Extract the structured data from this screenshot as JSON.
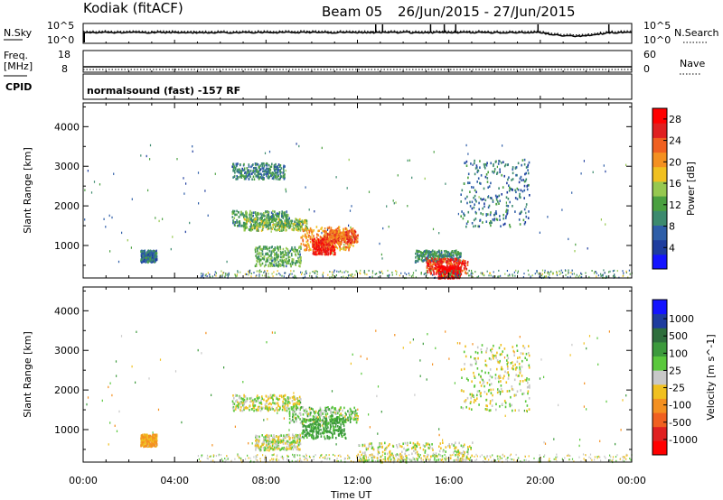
{
  "header": {
    "station": "Kodiak (fitACF)",
    "beam": "Beam 05",
    "date_range": "26/Jun/2015 - 27/Jun/2015"
  },
  "strip_labels": {
    "nsky": "N.Sky",
    "nsky_ticks": [
      "10^5",
      "10^0"
    ],
    "nsearch": "N.Search",
    "nsearch_ticks": [
      "10^5",
      "10^0"
    ],
    "freq": "Freq.",
    "freq_unit": "[MHz]",
    "freq_ticks": [
      "18",
      "8"
    ],
    "nave": "Nave",
    "nave_ticks": [
      "60",
      "0"
    ],
    "cpid": "CPID",
    "program": "normalsound (fast) -157 RF"
  },
  "colors": {
    "power": [
      "#1414ff",
      "#1e3c9e",
      "#2e5ea8",
      "#3c8a6e",
      "#4aa040",
      "#96c850",
      "#f0c020",
      "#f49020",
      "#f06020",
      "#e02020",
      "#ff0000"
    ],
    "velocity": [
      "#1414ff",
      "#1e3c9e",
      "#2e6e3c",
      "#3c9a3c",
      "#5ac83c",
      "#c8c8c8",
      "#f0c020",
      "#f49020",
      "#f06020",
      "#e02020",
      "#ff0000"
    ]
  },
  "chart_data": [
    {
      "type": "heatmap",
      "quantity": "Power",
      "x_labels": [
        "00:00",
        "04:00",
        "08:00",
        "12:00",
        "16:00",
        "20:00",
        "00:00"
      ],
      "x_range_hours": [
        0,
        24
      ],
      "ylabel": "Slant Range [km]",
      "y_ticks": [
        1000,
        2000,
        3000,
        4000
      ],
      "ylim": [
        180,
        4600
      ],
      "colorbar_label": "Power [dB]",
      "colorbar_ticks": [
        "4",
        "8",
        "12",
        "16",
        "20",
        "24",
        "28"
      ],
      "colorbar_range": [
        0,
        30
      ],
      "regions": [
        {
          "x": [
            6.5,
            9.0
          ],
          "y": [
            1500,
            1900
          ],
          "value": 11
        },
        {
          "x": [
            7.0,
            9.8
          ],
          "y": [
            1400,
            1700
          ],
          "value": 14
        },
        {
          "x": [
            9.5,
            11.8
          ],
          "y": [
            900,
            1500
          ],
          "value": 20
        },
        {
          "x": [
            10.0,
            11.0
          ],
          "y": [
            800,
            1200
          ],
          "value": 26
        },
        {
          "x": [
            10.5,
            12.0
          ],
          "y": [
            1100,
            1400
          ],
          "value": 23
        },
        {
          "x": [
            7.5,
            9.5
          ],
          "y": [
            500,
            1000
          ],
          "value": 12
        },
        {
          "x": [
            14.5,
            16.5
          ],
          "y": [
            600,
            900
          ],
          "value": 10
        },
        {
          "x": [
            15.0,
            16.8
          ],
          "y": [
            300,
            700
          ],
          "value": 25
        },
        {
          "x": [
            15.5,
            16.5
          ],
          "y": [
            200,
            500
          ],
          "value": 29
        },
        {
          "x": [
            6.5,
            8.8
          ],
          "y": [
            2700,
            3100
          ],
          "value": 9
        },
        {
          "x": [
            2.5,
            3.2
          ],
          "y": [
            600,
            900
          ],
          "value": 8
        },
        {
          "x": [
            16.5,
            19.5
          ],
          "y": [
            1500,
            3200
          ],
          "value": 8
        }
      ]
    },
    {
      "type": "heatmap",
      "quantity": "Velocity",
      "x_labels": [
        "00:00",
        "04:00",
        "08:00",
        "12:00",
        "16:00",
        "20:00",
        "00:00"
      ],
      "x_range_hours": [
        0,
        24
      ],
      "xlabel": "Time UT",
      "ylabel": "Slant Range [km]",
      "y_ticks": [
        1000,
        2000,
        3000,
        4000
      ],
      "ylim": [
        180,
        4600
      ],
      "colorbar_label": "Velocity [m s^-1]",
      "colorbar_ticks": [
        "1000",
        "500",
        "100",
        "25",
        "-25",
        "-100",
        "-500",
        "-1000"
      ],
      "regions": [
        {
          "x": [
            6.5,
            9.5
          ],
          "y": [
            1500,
            1900
          ],
          "value": 0
        },
        {
          "x": [
            9.0,
            12.0
          ],
          "y": [
            1200,
            1600
          ],
          "value": 60
        },
        {
          "x": [
            9.5,
            11.5
          ],
          "y": [
            800,
            1300
          ],
          "value": 150
        },
        {
          "x": [
            12.0,
            17.0
          ],
          "y": [
            200,
            700
          ],
          "value": 0
        },
        {
          "x": [
            7.5,
            9.5
          ],
          "y": [
            500,
            900
          ],
          "value": 0
        },
        {
          "x": [
            2.5,
            3.2
          ],
          "y": [
            600,
            900
          ],
          "value": -120
        },
        {
          "x": [
            16.5,
            19.5
          ],
          "y": [
            1500,
            3200
          ],
          "value": 0
        }
      ]
    }
  ]
}
